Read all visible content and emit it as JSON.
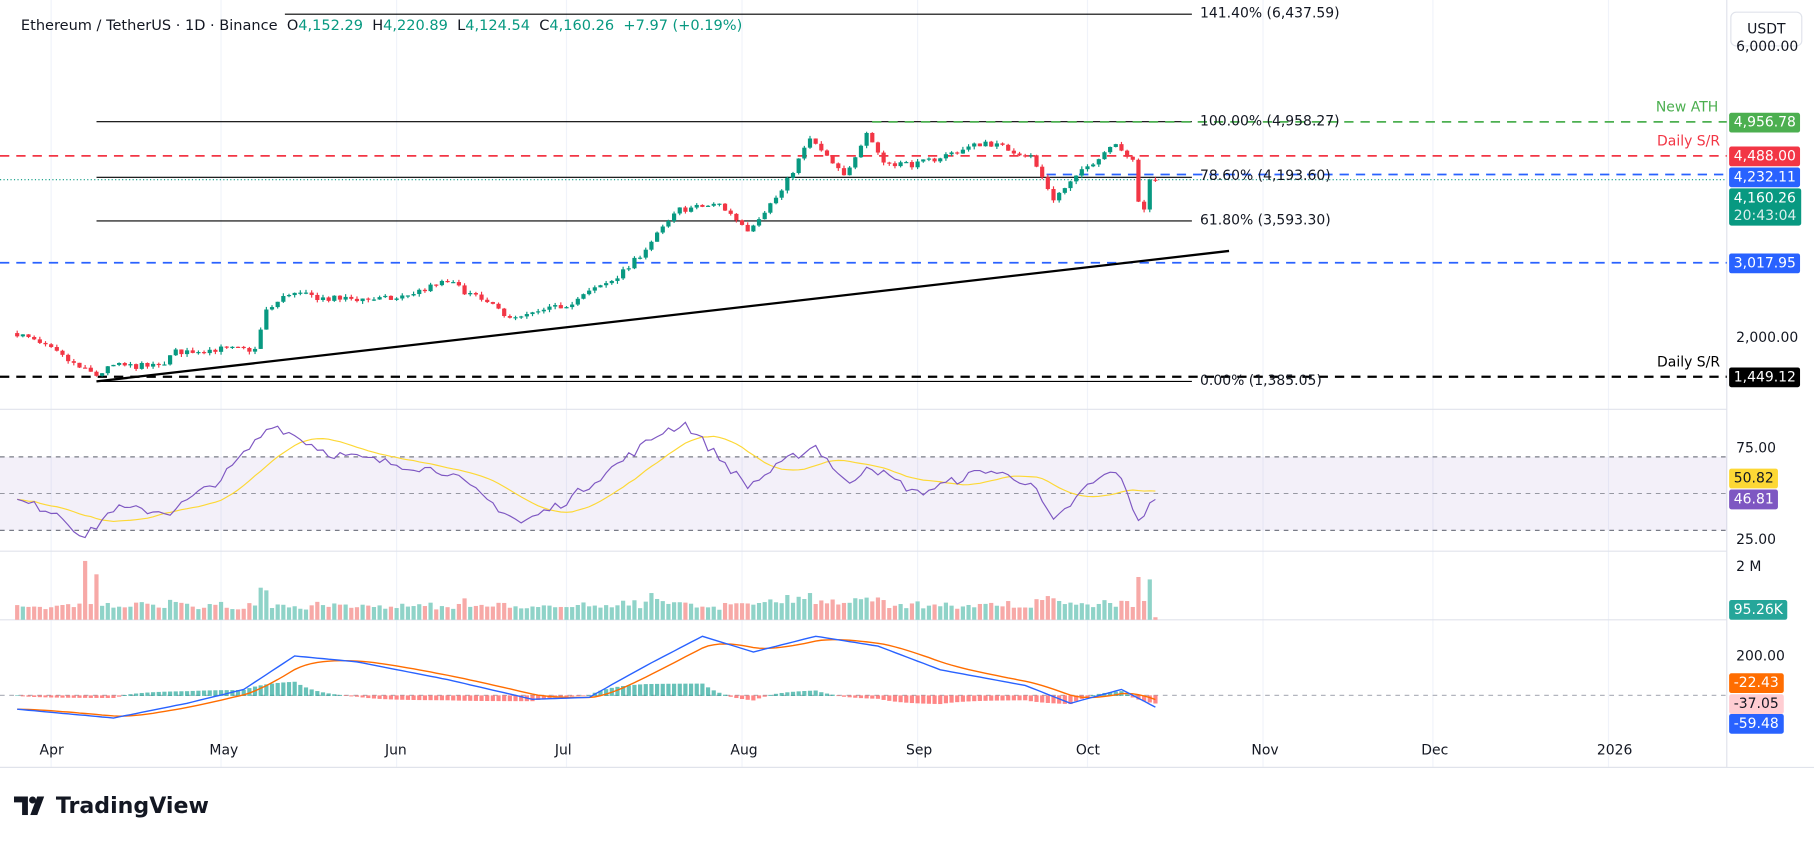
{
  "legend": {
    "symbol": "Ethereum / TetherUS · 1D · Binance",
    "open_label": "O",
    "open": "4,152.29",
    "high_label": "H",
    "high": "4,220.89",
    "low_label": "L",
    "low": "4,124.54",
    "close_label": "C",
    "close": "4,160.26",
    "change": "+7.97 (+0.19%)"
  },
  "currency_button": "USDT",
  "brand": "TradingView",
  "colors": {
    "up": "#089981",
    "down": "#f23645",
    "ath": "#4caf50",
    "resistance": "#f23645",
    "blue_level": "#2962ff",
    "rsi": "#7e57c2",
    "rsi_ma": "#fdd835",
    "macd": "#2962ff",
    "macd_signal": "#ff6d00"
  },
  "chart_data": {
    "type": "candlestick",
    "scale": "linear",
    "time_labels": [
      "Apr",
      "May",
      "Jun",
      "Jul",
      "Aug",
      "Sep",
      "Oct",
      "Nov",
      "Dec",
      "2026"
    ],
    "price_axis_labels": [
      "6,000.00",
      "2,000.00"
    ],
    "price_close_path": [
      [
        "2025-03-26",
        2050
      ],
      [
        "2025-04-01",
        1820
      ],
      [
        "2025-04-06",
        1570
      ],
      [
        "2025-04-09",
        1470
      ],
      [
        "2025-04-12",
        1600
      ],
      [
        "2025-04-20",
        1590
      ],
      [
        "2025-04-23",
        1790
      ],
      [
        "2025-05-01",
        1830
      ],
      [
        "2025-05-07",
        1820
      ],
      [
        "2025-05-09",
        2350
      ],
      [
        "2025-05-13",
        2600
      ],
      [
        "2025-05-20",
        2520
      ],
      [
        "2025-06-01",
        2520
      ],
      [
        "2025-06-10",
        2760
      ],
      [
        "2025-06-15",
        2540
      ],
      [
        "2025-06-22",
        2240
      ],
      [
        "2025-07-01",
        2440
      ],
      [
        "2025-07-09",
        2780
      ],
      [
        "2025-07-12",
        2950
      ],
      [
        "2025-07-17",
        3400
      ],
      [
        "2025-07-21",
        3750
      ],
      [
        "2025-07-28",
        3820
      ],
      [
        "2025-08-02",
        3480
      ],
      [
        "2025-08-08",
        4000
      ],
      [
        "2025-08-13",
        4720
      ],
      [
        "2025-08-19",
        4200
      ],
      [
        "2025-08-23",
        4820
      ],
      [
        "2025-08-26",
        4400
      ],
      [
        "2025-09-01",
        4370
      ],
      [
        "2025-09-13",
        4680
      ],
      [
        "2025-09-21",
        4480
      ],
      [
        "2025-09-25",
        3900
      ],
      [
        "2025-10-01",
        4340
      ],
      [
        "2025-10-06",
        4690
      ],
      [
        "2025-10-09",
        4400
      ],
      [
        "2025-10-10",
        3840
      ],
      [
        "2025-10-11",
        3760
      ],
      [
        "2025-10-12",
        4150
      ],
      [
        "2025-10-13",
        4160.26
      ]
    ],
    "fibonacci": [
      {
        "label": "141.40% (6,437.59)",
        "value": 6437.59
      },
      {
        "label": "100.00% (4,958.27)",
        "value": 4958.27
      },
      {
        "label": "78.60% (4,193.60)",
        "value": 4193.6
      },
      {
        "label": "61.80% (3,593.30)",
        "value": 3593.3
      },
      {
        "label": "0.00% (1,385.05)",
        "value": 1385.05
      }
    ],
    "trendline": [
      [
        "2025-04-09",
        1385
      ],
      [
        "2025-10-26",
        3180
      ]
    ],
    "levels": [
      {
        "name": "New ATH",
        "value": 4956.78,
        "tag": "4,956.78",
        "color": "#4caf50",
        "note": "New ATH"
      },
      {
        "name": "Daily S/R",
        "value": 4488.0,
        "tag": "4,488.00",
        "color": "#f23645",
        "note": "Daily S/R"
      },
      {
        "name": "level",
        "value": 4232.11,
        "tag": "4,232.11",
        "color": "#2962ff",
        "note": ""
      },
      {
        "name": "last",
        "value": 4160.26,
        "tag": "4,160.26",
        "countdown": "20:43:04",
        "color": "#089981",
        "note": ""
      },
      {
        "name": "level",
        "value": 3017.95,
        "tag": "3,017.95",
        "color": "#2962ff",
        "note": ""
      },
      {
        "name": "Daily S/R",
        "value": 1449.12,
        "tag": "1,449.12",
        "color": "#000000",
        "note": "Daily S/R"
      }
    ],
    "rsi": {
      "axis_labels": [
        "75.00",
        "25.00"
      ],
      "value": "46.81",
      "ma_value": "50.82",
      "band": [
        30,
        70
      ],
      "path": [
        [
          "2025-03-26",
          46
        ],
        [
          "2025-04-02",
          40
        ],
        [
          "2025-04-07",
          26
        ],
        [
          "2025-04-12",
          42
        ],
        [
          "2025-04-22",
          40
        ],
        [
          "2025-05-01",
          58
        ],
        [
          "2025-05-10",
          88
        ],
        [
          "2025-05-20",
          72
        ],
        [
          "2025-06-01",
          66
        ],
        [
          "2025-06-10",
          62
        ],
        [
          "2025-06-20",
          40
        ],
        [
          "2025-06-23",
          34
        ],
        [
          "2025-07-01",
          46
        ],
        [
          "2025-07-10",
          66
        ],
        [
          "2025-07-18",
          84
        ],
        [
          "2025-07-22",
          88
        ],
        [
          "2025-08-02",
          54
        ],
        [
          "2025-08-10",
          70
        ],
        [
          "2025-08-14",
          76
        ],
        [
          "2025-08-20",
          54
        ],
        [
          "2025-08-23",
          66
        ],
        [
          "2025-09-01",
          50
        ],
        [
          "2025-09-13",
          63
        ],
        [
          "2025-09-21",
          56
        ],
        [
          "2025-09-25",
          34
        ],
        [
          "2025-10-01",
          54
        ],
        [
          "2025-10-06",
          63
        ],
        [
          "2025-10-10",
          36
        ],
        [
          "2025-10-13",
          46.81
        ]
      ]
    },
    "volume": {
      "axis_label": "2 M",
      "value": "95.26K",
      "notable": [
        [
          "2025-04-07",
          2.2
        ],
        [
          "2025-04-09",
          1.7
        ],
        [
          "2025-05-08",
          1.2
        ],
        [
          "2025-05-09",
          1.1
        ],
        [
          "2025-07-16",
          1.0
        ],
        [
          "2025-08-13",
          1.0
        ],
        [
          "2025-10-10",
          1.6
        ]
      ],
      "unit": "M"
    },
    "macd": {
      "axis_label": "200.00",
      "macd_value": "-59.48",
      "signal_value": "-22.43",
      "hist_value": "-37.05",
      "path": [
        [
          "2025-03-26",
          -70
        ],
        [
          "2025-04-12",
          -115
        ],
        [
          "2025-04-25",
          -40
        ],
        [
          "2025-05-05",
          30
        ],
        [
          "2025-05-14",
          200
        ],
        [
          "2025-05-25",
          170
        ],
        [
          "2025-06-10",
          80
        ],
        [
          "2025-06-25",
          -20
        ],
        [
          "2025-07-05",
          -10
        ],
        [
          "2025-07-15",
          150
        ],
        [
          "2025-07-25",
          300
        ],
        [
          "2025-08-03",
          220
        ],
        [
          "2025-08-14",
          300
        ],
        [
          "2025-08-25",
          250
        ],
        [
          "2025-09-05",
          130
        ],
        [
          "2025-09-20",
          50
        ],
        [
          "2025-09-28",
          -40
        ],
        [
          "2025-10-07",
          30
        ],
        [
          "2025-10-13",
          -59.48
        ]
      ]
    }
  }
}
